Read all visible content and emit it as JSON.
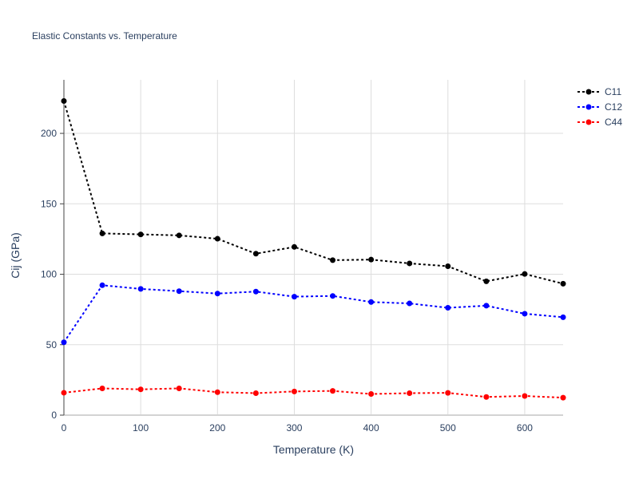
{
  "chart_data": {
    "type": "line",
    "title": "Elastic Constants vs. Temperature",
    "xlabel": "Temperature (K)",
    "ylabel": "Cij (GPa)",
    "xlim": [
      0,
      650
    ],
    "ylim": [
      0,
      238
    ],
    "x_ticks": [
      0,
      100,
      200,
      300,
      400,
      500,
      600
    ],
    "y_ticks": [
      0,
      50,
      100,
      150,
      200
    ],
    "grid": true,
    "legend_position": "top-right",
    "x": [
      0,
      50,
      100,
      150,
      200,
      250,
      300,
      350,
      400,
      450,
      500,
      550,
      600,
      650
    ],
    "series": [
      {
        "name": "C11",
        "color": "#000000",
        "values": [
          223,
          129,
          128.3,
          127.6,
          125.2,
          114.6,
          119.4,
          110,
          110.4,
          107.7,
          105.7,
          95,
          100.2,
          93.3
        ]
      },
      {
        "name": "C12",
        "color": "#0000ff",
        "values": [
          51.7,
          92.2,
          89.6,
          88,
          86.3,
          87.7,
          84.1,
          84.6,
          80.3,
          79.3,
          76.2,
          77.7,
          72,
          69.5
        ]
      },
      {
        "name": "C44",
        "color": "#ff0000",
        "values": [
          15.9,
          19,
          18.3,
          19,
          16.3,
          15.6,
          16.8,
          17.2,
          15,
          15.6,
          15.8,
          12.9,
          13.6,
          12.4
        ]
      }
    ]
  }
}
